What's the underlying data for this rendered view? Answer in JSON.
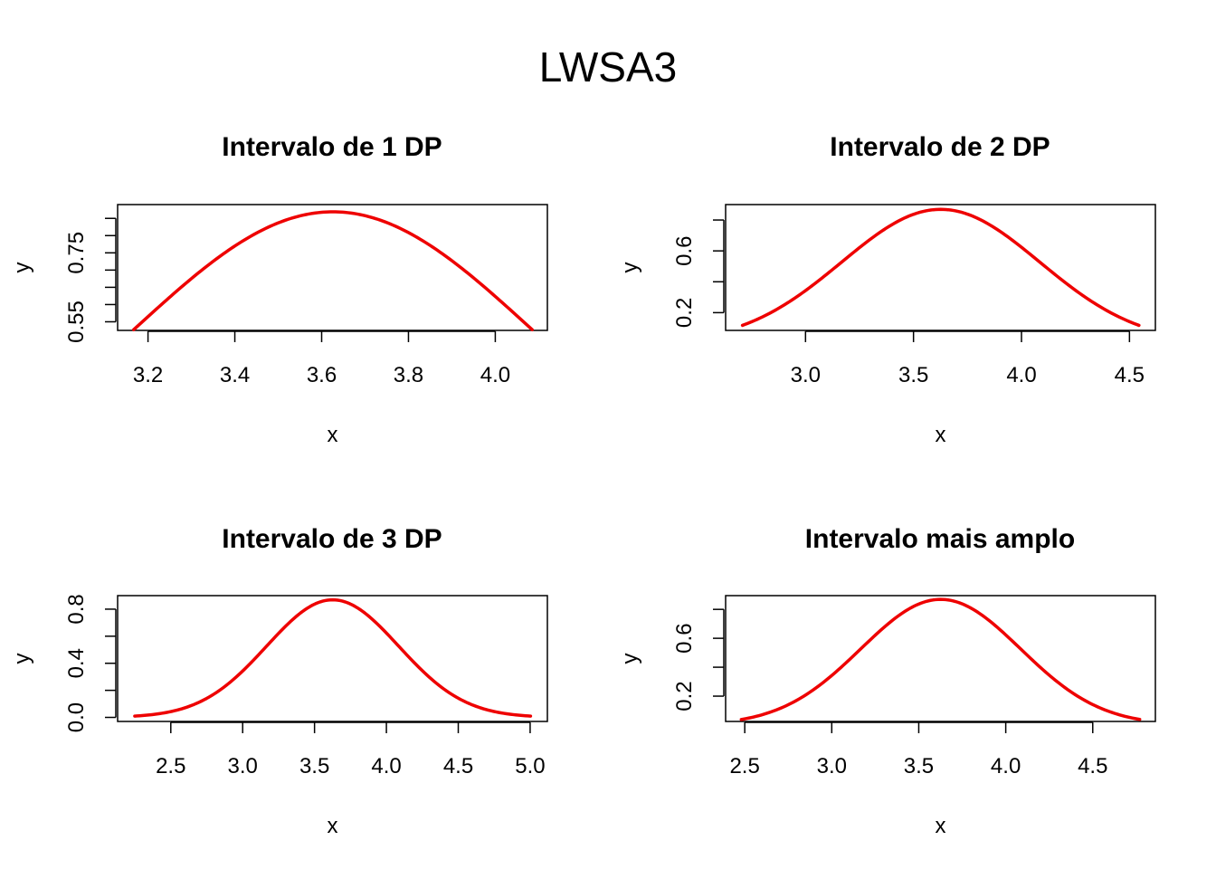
{
  "title": "LWSA3",
  "chart_data": [
    {
      "type": "line",
      "title": "Intervalo de 1 DP",
      "xlabel": "x",
      "ylabel": "y",
      "series": [
        {
          "color": "#ee0000",
          "mean": 3.626,
          "sd": 0.459,
          "xrange": [
            3.167,
            4.085
          ],
          "scale": 0.869
        }
      ],
      "xlim": [
        3.13,
        4.12
      ],
      "ylim": [
        0.525,
        0.89
      ],
      "xticks": [
        3.2,
        3.4,
        3.6,
        3.8,
        4.0
      ],
      "xtick_labels": [
        "3.2",
        "3.4",
        "3.6",
        "3.8",
        "4.0"
      ],
      "yticks": [
        0.55,
        0.6,
        0.65,
        0.7,
        0.75,
        0.8,
        0.85
      ],
      "ytick_labels": [
        "0.55",
        "",
        "",
        "",
        "0.75",
        "",
        ""
      ]
    },
    {
      "type": "line",
      "title": "Intervalo de 2 DP",
      "xlabel": "x",
      "ylabel": "y",
      "series": [
        {
          "color": "#ee0000",
          "mean": 3.626,
          "sd": 0.459,
          "xrange": [
            2.708,
            4.544
          ],
          "scale": 0.869
        }
      ],
      "xlim": [
        2.63,
        4.62
      ],
      "ylim": [
        0.085,
        0.9
      ],
      "xticks": [
        3.0,
        3.5,
        4.0,
        4.5
      ],
      "xtick_labels": [
        "3.0",
        "3.5",
        "4.0",
        "4.5"
      ],
      "yticks": [
        0.2,
        0.4,
        0.6,
        0.8
      ],
      "ytick_labels": [
        "0.2",
        "",
        "0.6",
        ""
      ]
    },
    {
      "type": "line",
      "title": "Intervalo de 3 DP",
      "xlabel": "x",
      "ylabel": "y",
      "series": [
        {
          "color": "#ee0000",
          "mean": 3.626,
          "sd": 0.459,
          "xrange": [
            2.249,
            5.003
          ],
          "scale": 0.869
        }
      ],
      "xlim": [
        2.13,
        5.12
      ],
      "ylim": [
        -0.03,
        0.9
      ],
      "xticks": [
        2.5,
        3.0,
        3.5,
        4.0,
        4.5,
        5.0
      ],
      "xtick_labels": [
        "2.5",
        "3.0",
        "3.5",
        "4.0",
        "4.5",
        "5.0"
      ],
      "yticks": [
        0.0,
        0.2,
        0.4,
        0.6,
        0.8
      ],
      "ytick_labels": [
        "0.0",
        "",
        "0.4",
        "",
        "0.8"
      ]
    },
    {
      "type": "line",
      "title": "Intervalo mais amplo",
      "xlabel": "x",
      "ylabel": "y",
      "series": [
        {
          "color": "#ee0000",
          "mean": 3.626,
          "sd": 0.459,
          "xrange": [
            2.48,
            4.77
          ],
          "scale": 0.869
        }
      ],
      "xlim": [
        2.39,
        4.86
      ],
      "ylim": [
        0.025,
        0.895
      ],
      "xticks": [
        2.5,
        3.0,
        3.5,
        4.0,
        4.5
      ],
      "xtick_labels": [
        "2.5",
        "3.0",
        "3.5",
        "4.0",
        "4.5"
      ],
      "yticks": [
        0.2,
        0.4,
        0.6,
        0.8
      ],
      "ytick_labels": [
        "0.2",
        "",
        "0.6",
        ""
      ]
    }
  ]
}
